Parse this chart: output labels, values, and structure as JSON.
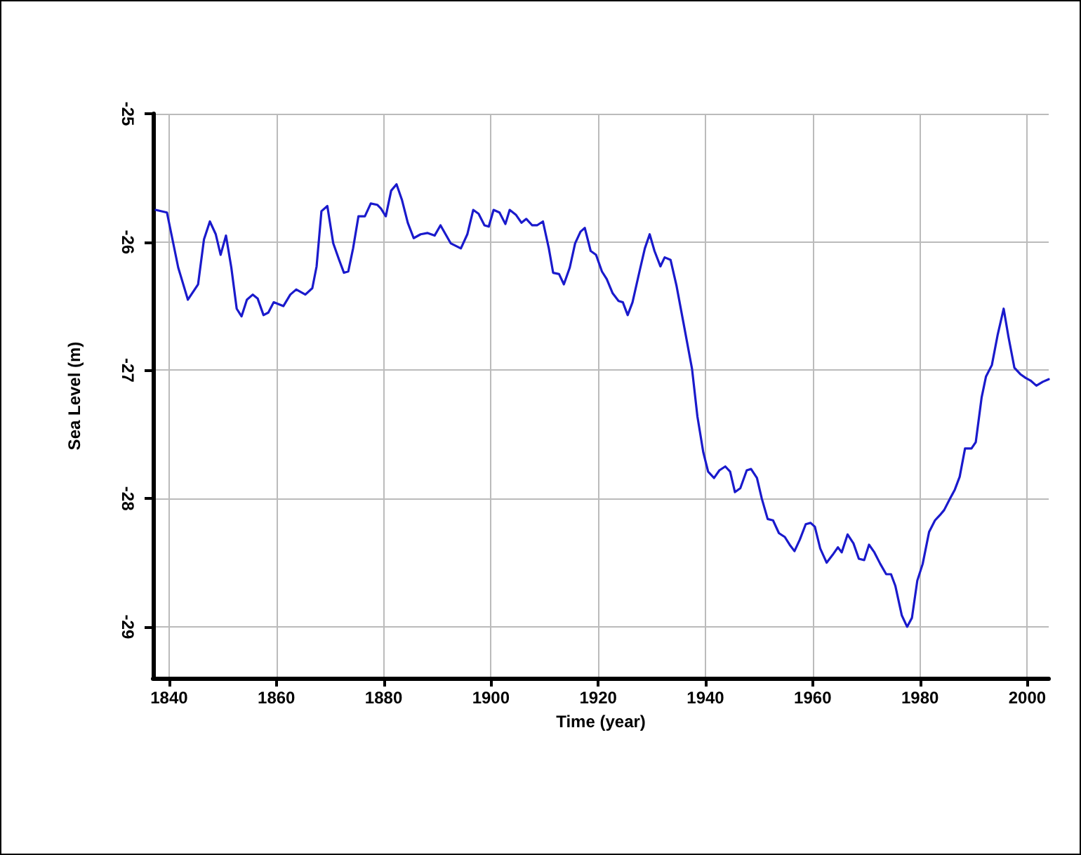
{
  "chart_data": {
    "type": "line",
    "xlabel": "Time (year)",
    "ylabel": "Sea Level (m)",
    "xlim": [
      1837,
      2004
    ],
    "ylim": [
      -29.4,
      -25
    ],
    "xticks": [
      1840,
      1860,
      1880,
      1900,
      1920,
      1940,
      1960,
      1980,
      2000
    ],
    "yticks": [
      -29,
      -28,
      -27,
      -26,
      -25
    ],
    "grid": true,
    "marker": "none",
    "line_style": "solid",
    "series": [
      {
        "color": "#1a1acc",
        "x": [
          1837.5,
          1839.6,
          1841.7,
          1843.5,
          1845.4,
          1846.5,
          1847.6,
          1848.7,
          1849.6,
          1850.6,
          1851.6,
          1852.6,
          1853.5,
          1854.5,
          1855.6,
          1856.5,
          1857.6,
          1858.5,
          1859.5,
          1861.3,
          1862.6,
          1863.7,
          1865.4,
          1866.7,
          1867.5,
          1868.4,
          1869.5,
          1870.6,
          1871.7,
          1872.6,
          1873.4,
          1874.3,
          1875.3,
          1876.5,
          1877.6,
          1878.8,
          1879.5,
          1880.4,
          1881.4,
          1882.4,
          1883.4,
          1884.5,
          1885.6,
          1886.9,
          1888.2,
          1889.5,
          1890.6,
          1892.5,
          1894.4,
          1895.6,
          1896.7,
          1897.7,
          1898.8,
          1899.6,
          1900.5,
          1901.6,
          1902.7,
          1903.5,
          1904.7,
          1905.7,
          1906.6,
          1907.7,
          1908.6,
          1909.7,
          1910.8,
          1911.6,
          1912.7,
          1913.6,
          1914.7,
          1915.7,
          1916.7,
          1917.5,
          1918.6,
          1919.6,
          1920.7,
          1921.6,
          1922.7,
          1923.8,
          1924.6,
          1925.5,
          1926.4,
          1927.7,
          1928.7,
          1929.6,
          1930.5,
          1931.6,
          1932.4,
          1933.5,
          1934.6,
          1935.9,
          1937.5,
          1938.5,
          1939.6,
          1940.5,
          1941.6,
          1942.6,
          1943.7,
          1944.6,
          1945.5,
          1946.5,
          1947.7,
          1948.5,
          1949.6,
          1950.5,
          1951.6,
          1952.6,
          1953.7,
          1954.8,
          1955.7,
          1956.6,
          1957.6,
          1958.7,
          1959.6,
          1960.4,
          1961.4,
          1962.6,
          1963.7,
          1964.7,
          1965.4,
          1966.5,
          1967.6,
          1968.6,
          1969.6,
          1970.5,
          1971.5,
          1972.6,
          1973.7,
          1974.6,
          1975.4,
          1976.6,
          1977.6,
          1978.5,
          1979.5,
          1980.5,
          1981.7,
          1982.8,
          1983.7,
          1984.5,
          1985.6,
          1986.5,
          1987.4,
          1988.4,
          1989.6,
          1990.4,
          1991.5,
          1992.3,
          1993.4,
          1994.5,
          1995.6,
          1996.5,
          1997.6,
          1998.7,
          1999.7,
          2000.6,
          2001.7,
          2002.9,
          2004
        ],
        "values": [
          -25.75,
          -25.77,
          -26.2,
          -26.45,
          -26.33,
          -25.98,
          -25.84,
          -25.94,
          -26.1,
          -25.95,
          -26.2,
          -26.52,
          -26.58,
          -26.45,
          -26.41,
          -26.44,
          -26.57,
          -26.55,
          -26.47,
          -26.5,
          -26.41,
          -26.37,
          -26.41,
          -26.36,
          -26.19,
          -25.76,
          -25.72,
          -26.01,
          -26.14,
          -26.24,
          -26.23,
          -26.05,
          -25.8,
          -25.8,
          -25.7,
          -25.71,
          -25.74,
          -25.8,
          -25.6,
          -25.55,
          -25.67,
          -25.85,
          -25.97,
          -25.94,
          -25.93,
          -25.95,
          -25.87,
          -26.01,
          -26.05,
          -25.94,
          -25.75,
          -25.78,
          -25.87,
          -25.88,
          -25.75,
          -25.77,
          -25.86,
          -25.75,
          -25.79,
          -25.85,
          -25.82,
          -25.87,
          -25.87,
          -25.84,
          -26.05,
          -26.24,
          -26.25,
          -26.33,
          -26.2,
          -26.01,
          -25.92,
          -25.89,
          -26.07,
          -26.1,
          -26.23,
          -26.29,
          -26.4,
          -26.46,
          -26.47,
          -26.57,
          -26.47,
          -26.23,
          -26.05,
          -25.94,
          -26.07,
          -26.19,
          -26.12,
          -26.14,
          -26.34,
          -26.63,
          -26.99,
          -27.36,
          -27.64,
          -27.79,
          -27.84,
          -27.78,
          -27.75,
          -27.79,
          -27.95,
          -27.92,
          -27.78,
          -27.77,
          -27.84,
          -28.0,
          -28.16,
          -28.17,
          -28.27,
          -28.3,
          -28.36,
          -28.41,
          -28.32,
          -28.2,
          -28.19,
          -28.22,
          -28.39,
          -28.5,
          -28.44,
          -28.38,
          -28.42,
          -28.28,
          -28.35,
          -28.47,
          -28.48,
          -28.36,
          -28.42,
          -28.51,
          -28.59,
          -28.59,
          -28.68,
          -28.91,
          -29.0,
          -28.93,
          -28.64,
          -28.51,
          -28.26,
          -28.17,
          -28.13,
          -28.09,
          -28.0,
          -27.93,
          -27.83,
          -27.61,
          -27.61,
          -27.56,
          -27.21,
          -27.05,
          -26.96,
          -26.72,
          -26.52,
          -26.74,
          -26.98,
          -27.03,
          -27.06,
          -27.08,
          -27.12,
          -27.09,
          -27.07
        ]
      }
    ]
  }
}
